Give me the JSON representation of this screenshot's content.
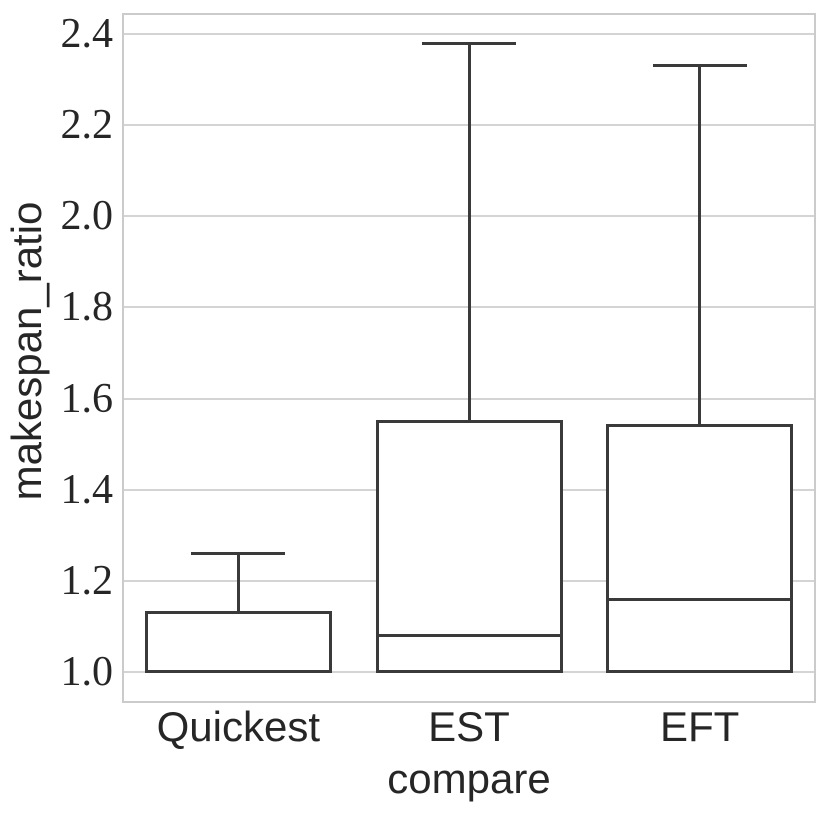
{
  "chart_data": {
    "type": "boxplot",
    "title": "",
    "xlabel": "compare",
    "ylabel": "makespan_ratio",
    "categories": [
      "Quickest",
      "EST",
      "EFT"
    ],
    "series": [
      {
        "label": "Quickest",
        "whisker_low": 1.0,
        "q1": 1.0,
        "median": 1.0,
        "q3": 1.13,
        "whisker_high": 1.26
      },
      {
        "label": "EST",
        "whisker_low": 1.0,
        "q1": 1.0,
        "median": 1.08,
        "q3": 1.55,
        "whisker_high": 2.38
      },
      {
        "label": "EFT",
        "whisker_low": 1.0,
        "q1": 1.0,
        "median": 1.16,
        "q3": 1.54,
        "whisker_high": 2.33
      }
    ],
    "y_ticks": [
      1.0,
      1.2,
      1.4,
      1.6,
      1.8,
      2.0,
      2.2,
      2.4
    ],
    "y_tick_labels": [
      "1.0",
      "1.2",
      "1.4",
      "1.6",
      "1.8",
      "2.0",
      "2.2",
      "2.4"
    ],
    "ylim": [
      0.934,
      2.444
    ],
    "grid": true,
    "legend": null,
    "colors": {
      "box_line": "#3a3a3a",
      "box_fill": "#ffffff",
      "grid_line": "#d4d4d4",
      "spine": "#cbcbcb",
      "text": "#262626"
    }
  }
}
